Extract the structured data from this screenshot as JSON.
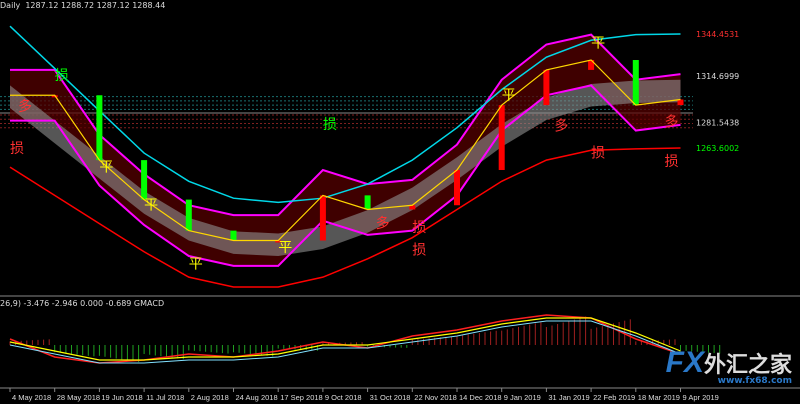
{
  "header": {
    "timeframe": "Daily",
    "ohlc": "1287.12 1288.72 1287.12 1288.44"
  },
  "indicator_header": {
    "text": "26,9) -3.476 -2.946 0.000 -0.689  GMACD"
  },
  "watermark": {
    "brand": "FX",
    "name": "外汇之家",
    "url": "www.fx68.com"
  },
  "colors": {
    "up": "#ff0000",
    "down": "#00ff00",
    "cyan": "#00d8e8",
    "magenta": "#ff00ff",
    "red_band": "#ff0000",
    "bull_fill": "#8b0000",
    "bear_fill": "#006400",
    "gray_band": "#909090"
  },
  "chart_data": {
    "type": "line",
    "x": [
      "4 May 2018",
      "28 May 2018",
      "19 Jun 2018",
      "11 Jul 2018",
      "2 Aug 2018",
      "24 Aug 2018",
      "17 Sep 2018",
      "9 Oct 2018",
      "31 Oct 2018",
      "22 Nov 2018",
      "14 Dec 2018",
      "9 Jan 2019",
      "31 Jan 2019",
      "22 Feb 2019",
      "18 Mar 2019",
      "9 Apr 2019"
    ],
    "close": [
      1301,
      1301,
      1255,
      1227,
      1205,
      1198,
      1198,
      1230,
      1220,
      1223,
      1248,
      1294,
      1319,
      1326,
      1294,
      1298
    ],
    "upper_cyan": [
      1350,
      1320,
      1290,
      1260,
      1240,
      1228,
      1225,
      1228,
      1238,
      1255,
      1278,
      1305,
      1328,
      1340,
      1344,
      1344.4531
    ],
    "lower_red": [
      1250,
      1230,
      1210,
      1190,
      1172,
      1165,
      1165,
      1172,
      1185,
      1200,
      1220,
      1240,
      1255,
      1262,
      1263,
      1263.6002
    ],
    "price_labels": [
      {
        "value": "1344.4531",
        "color": "#ff3030"
      },
      {
        "value": "1314.6999",
        "color": "#dddddd"
      },
      {
        "value": "1281.5438",
        "color": "#dddddd"
      },
      {
        "value": "1263.6002",
        "color": "#00ff00"
      }
    ],
    "annotations": [
      {
        "text": "损",
        "date": "28 May 2018",
        "price": 1312,
        "color": "#00ff00"
      },
      {
        "text": "损",
        "date": "4 May 2018",
        "price": 1260,
        "color": "#ff3030"
      },
      {
        "text": "多",
        "date": "4 May 2018",
        "price": 1290,
        "color": "#ff3030"
      },
      {
        "text": "平",
        "date": "19 Jun 2018",
        "price": 1247,
        "color": "#ffff00"
      },
      {
        "text": "平",
        "date": "11 Jul 2018",
        "price": 1220,
        "color": "#ffff00"
      },
      {
        "text": "平",
        "date": "2 Aug 2018",
        "price": 1178,
        "color": "#ffff00"
      },
      {
        "text": "平",
        "date": "17 Sep 2018",
        "price": 1190,
        "color": "#ffff00"
      },
      {
        "text": "损",
        "date": "9 Oct 2018",
        "price": 1277,
        "color": "#00ff00"
      },
      {
        "text": "多",
        "date": "31 Oct 2018",
        "price": 1207,
        "color": "#ff3030"
      },
      {
        "text": "损",
        "date": "22 Nov 2018",
        "price": 1204,
        "color": "#ff3030"
      },
      {
        "text": "损",
        "date": "22 Nov 2018",
        "price": 1188,
        "color": "#ff3030"
      },
      {
        "text": "平",
        "date": "9 Jan 2019",
        "price": 1298,
        "color": "#ffff00"
      },
      {
        "text": "多",
        "date": "31 Jan 2019",
        "price": 1276,
        "color": "#ff3030"
      },
      {
        "text": "平",
        "date": "22 Feb 2019",
        "price": 1335,
        "color": "#ffff00"
      },
      {
        "text": "损",
        "date": "22 Feb 2019",
        "price": 1257,
        "color": "#ff3030"
      },
      {
        "text": "损",
        "date": "9 Apr 2019",
        "price": 1251,
        "color": "#ff3030"
      },
      {
        "text": "多",
        "date": "9 Apr 2019",
        "price": 1279,
        "color": "#ff3030"
      }
    ],
    "macd": {
      "name": "GMACD",
      "values": [
        2,
        -4,
        -6,
        -5,
        -3,
        -4,
        -2,
        1,
        -1,
        3,
        5,
        8,
        10,
        9,
        2,
        -3
      ],
      "signal": [
        1,
        -2,
        -5,
        -5,
        -4,
        -4,
        -3,
        0,
        0,
        2,
        4,
        7,
        9,
        9,
        4,
        -2
      ]
    }
  }
}
